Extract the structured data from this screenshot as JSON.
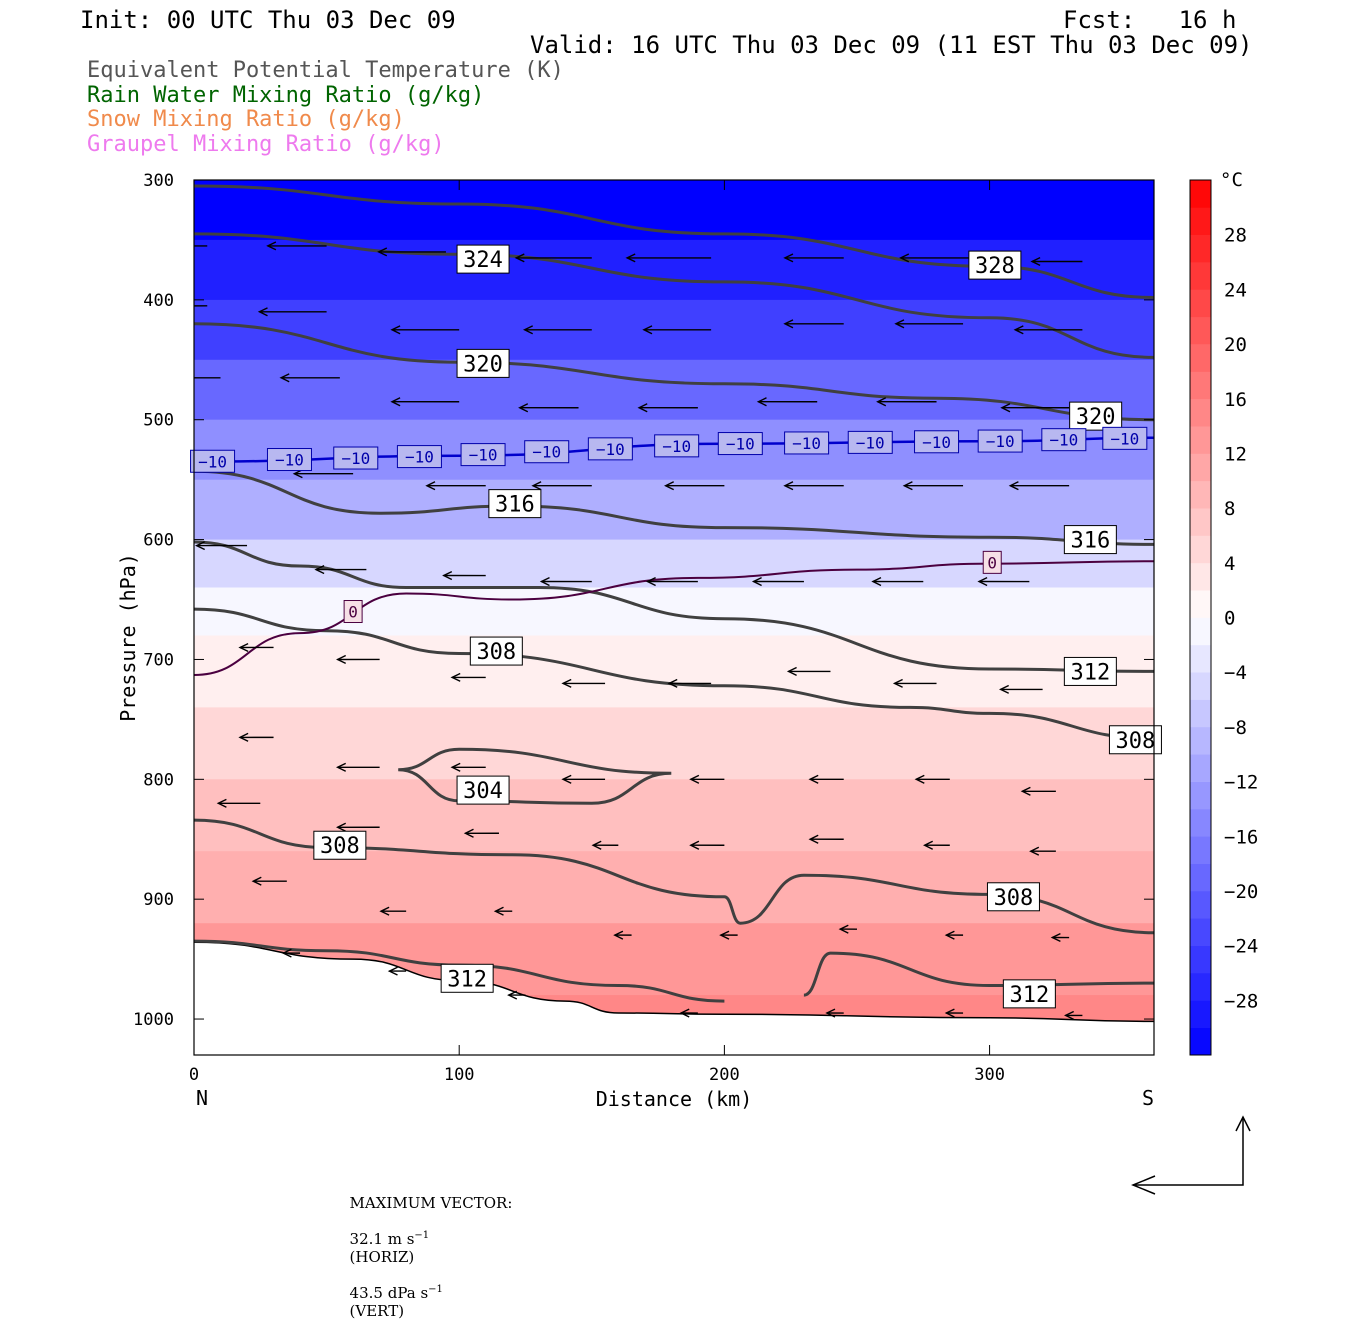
{
  "header": {
    "init": "Init: 00 UTC Thu 03 Dec 09",
    "fcst": "Fcst:   16 h",
    "valid": "Valid: 16 UTC Thu 03 Dec 09 (11 EST Thu 03 Dec 09)"
  },
  "legend": [
    {
      "label": "Equivalent Potential Temperature (K)",
      "color": "#555555"
    },
    {
      "label": "Rain Water Mixing Ratio (g/kg)",
      "color": "#006400"
    },
    {
      "label": "Snow Mixing Ratio (g/kg)",
      "color": "#f08a4b"
    },
    {
      "label": "Graupel Mixing Ratio (g/kg)",
      "color": "#ee7aee"
    }
  ],
  "chart_data": {
    "type": "contour_cross_section",
    "xlabel": "Distance (km)",
    "ylabel": "Pressure (hPa)",
    "xlim": [
      0,
      362
    ],
    "ylim": [
      1030,
      300
    ],
    "x_ticks": [
      0,
      100,
      200,
      300
    ],
    "y_ticks": [
      300,
      400,
      500,
      600,
      700,
      800,
      900,
      1000
    ],
    "left_end_label": "N",
    "right_end_label": "S",
    "colorbar": {
      "unit": "°C",
      "range": [
        -32,
        32
      ],
      "tick_labels": [
        "28",
        "24",
        "20",
        "16",
        "12",
        "8",
        "4",
        "0",
        "−4",
        "−8",
        "−12",
        "−16",
        "−20",
        "−24",
        "−28"
      ],
      "tick_values": [
        28,
        24,
        20,
        16,
        12,
        8,
        4,
        0,
        -4,
        -8,
        -12,
        -16,
        -20,
        -24,
        -28
      ],
      "low_color": "#0000ff",
      "mid_color": "#ffffff",
      "high_color": "#ff0000"
    },
    "temperature_shading_levels": [
      {
        "p": 300,
        "t": -32
      },
      {
        "p": 350,
        "t": -28
      },
      {
        "p": 400,
        "t": -24
      },
      {
        "p": 450,
        "t": -19
      },
      {
        "p": 500,
        "t": -14
      },
      {
        "p": 550,
        "t": -10
      },
      {
        "p": 600,
        "t": -5
      },
      {
        "p": 640,
        "t": -1
      },
      {
        "p": 680,
        "t": 2
      },
      {
        "p": 740,
        "t": 5
      },
      {
        "p": 800,
        "t": 8
      },
      {
        "p": 860,
        "t": 10
      },
      {
        "p": 920,
        "t": 13
      },
      {
        "p": 980,
        "t": 15
      }
    ],
    "theta_e_contours": [
      {
        "level": 328,
        "points": [
          [
            0,
            305
          ],
          [
            100,
            320
          ],
          [
            200,
            345
          ],
          [
            300,
            372
          ],
          [
            362,
            398
          ]
        ]
      },
      {
        "level": 324,
        "points": [
          [
            0,
            345
          ],
          [
            100,
            362
          ],
          [
            200,
            385
          ],
          [
            300,
            415
          ],
          [
            362,
            448
          ]
        ]
      },
      {
        "level": 320,
        "points": [
          [
            0,
            420
          ],
          [
            100,
            452
          ],
          [
            200,
            470
          ],
          [
            280,
            482
          ],
          [
            362,
            500
          ]
        ]
      },
      {
        "level": 316,
        "points": [
          [
            0,
            543
          ],
          [
            70,
            578
          ],
          [
            120,
            572
          ],
          [
            200,
            590
          ],
          [
            300,
            598
          ],
          [
            362,
            604
          ]
        ]
      },
      {
        "level": 312,
        "points": [
          [
            0,
            602
          ],
          [
            40,
            622
          ],
          [
            80,
            640
          ],
          [
            130,
            640
          ],
          [
            200,
            666
          ],
          [
            300,
            708
          ],
          [
            362,
            710
          ]
        ]
      },
      {
        "level": 308,
        "points": [
          [
            0,
            658
          ],
          [
            50,
            676
          ],
          [
            100,
            695
          ],
          [
            200,
            722
          ],
          [
            270,
            740
          ],
          [
            300,
            745
          ],
          [
            362,
            766
          ]
        ]
      },
      {
        "level": 308,
        "points": [
          [
            0,
            834
          ],
          [
            50,
            857
          ],
          [
            120,
            863
          ],
          [
            200,
            898
          ],
          [
            206,
            920
          ],
          [
            230,
            880
          ],
          [
            300,
            896
          ],
          [
            362,
            928
          ]
        ]
      },
      {
        "level": 312,
        "points": [
          [
            0,
            935
          ],
          [
            50,
            943
          ],
          [
            100,
            955
          ],
          [
            160,
            972
          ],
          [
            200,
            985
          ]
        ]
      },
      {
        "level": 312,
        "points": [
          [
            230,
            980
          ],
          [
            240,
            945
          ],
          [
            300,
            972
          ],
          [
            362,
            970
          ]
        ]
      }
    ],
    "theta_e_closed_contours": [
      {
        "level": 304,
        "points": [
          [
            77,
            792
          ],
          [
            100,
            775
          ],
          [
            180,
            795
          ],
          [
            150,
            820
          ],
          [
            100,
            818
          ],
          [
            77,
            792
          ]
        ]
      }
    ],
    "theta_e_labels": [
      {
        "text": "324",
        "x": 109,
        "p": 366
      },
      {
        "text": "328",
        "x": 302,
        "p": 371
      },
      {
        "text": "320",
        "x": 109,
        "p": 453
      },
      {
        "text": "320",
        "x": 340,
        "p": 497
      },
      {
        "text": "316",
        "x": 121,
        "p": 570
      },
      {
        "text": "316",
        "x": 338,
        "p": 600
      },
      {
        "text": "308",
        "x": 114,
        "p": 693
      },
      {
        "text": "312",
        "x": 338,
        "p": 710
      },
      {
        "text": "308",
        "x": 355,
        "p": 767
      },
      {
        "text": "304",
        "x": 109,
        "p": 809
      },
      {
        "text": "308",
        "x": 55,
        "p": 855
      },
      {
        "text": "308",
        "x": 309,
        "p": 898
      },
      {
        "text": "312",
        "x": 103,
        "p": 966
      },
      {
        "text": "312",
        "x": 315,
        "p": 979
      }
    ],
    "minus10_isotherm": {
      "level": -10,
      "points": [
        [
          0,
          535
        ],
        [
          100,
          530
        ],
        [
          200,
          520
        ],
        [
          300,
          518
        ],
        [
          362,
          515
        ]
      ],
      "label": "−10",
      "label_x": [
        7,
        36,
        61,
        85,
        109,
        133,
        157,
        182,
        206,
        231,
        255,
        280,
        304,
        328,
        351
      ]
    },
    "zero_isotherm": {
      "level": 0,
      "points": [
        [
          0,
          713
        ],
        [
          40,
          678
        ],
        [
          80,
          645
        ],
        [
          120,
          650
        ],
        [
          190,
          632
        ],
        [
          250,
          625
        ],
        [
          300,
          620
        ],
        [
          362,
          618
        ]
      ],
      "labels": [
        {
          "text": "0",
          "x": 60,
          "p": 660
        },
        {
          "text": "0",
          "x": 301,
          "p": 619
        }
      ]
    },
    "terrain_surface": [
      [
        0,
        936
      ],
      [
        60,
        950
      ],
      [
        100,
        968
      ],
      [
        140,
        985
      ],
      [
        160,
        995
      ],
      [
        200,
        996
      ],
      [
        300,
        999
      ],
      [
        362,
        1002
      ]
    ],
    "wind_vectors": [
      {
        "x": 5,
        "p": 355,
        "u": -18,
        "w": 0
      },
      {
        "x": 50,
        "p": 355,
        "u": -14,
        "w": 0
      },
      {
        "x": 95,
        "p": 360,
        "u": -16,
        "w": 0
      },
      {
        "x": 150,
        "p": 365,
        "u": -18,
        "w": 0
      },
      {
        "x": 195,
        "p": 365,
        "u": -20,
        "w": 0
      },
      {
        "x": 245,
        "p": 365,
        "u": -14,
        "w": 0
      },
      {
        "x": 295,
        "p": 365,
        "u": -18,
        "w": 0
      },
      {
        "x": 335,
        "p": 368,
        "u": -12,
        "w": 0
      },
      {
        "x": 5,
        "p": 405,
        "u": -16,
        "w": 0
      },
      {
        "x": 50,
        "p": 410,
        "u": -16,
        "w": 0
      },
      {
        "x": 100,
        "p": 425,
        "u": -16,
        "w": 0
      },
      {
        "x": 150,
        "p": 425,
        "u": -16,
        "w": 0
      },
      {
        "x": 195,
        "p": 425,
        "u": -16,
        "w": 0
      },
      {
        "x": 245,
        "p": 420,
        "u": -14,
        "w": 0
      },
      {
        "x": 290,
        "p": 420,
        "u": -16,
        "w": 0
      },
      {
        "x": 335,
        "p": 425,
        "u": -16,
        "w": 0
      },
      {
        "x": 10,
        "p": 465,
        "u": -14,
        "w": 0
      },
      {
        "x": 55,
        "p": 465,
        "u": -14,
        "w": 0
      },
      {
        "x": 100,
        "p": 485,
        "u": -16,
        "w": 0
      },
      {
        "x": 145,
        "p": 490,
        "u": -14,
        "w": 0
      },
      {
        "x": 190,
        "p": 490,
        "u": -14,
        "w": 0
      },
      {
        "x": 235,
        "p": 485,
        "u": -14,
        "w": 0
      },
      {
        "x": 280,
        "p": 485,
        "u": -14,
        "w": 0
      },
      {
        "x": 330,
        "p": 490,
        "u": -16,
        "w": 0
      },
      {
        "x": 60,
        "p": 545,
        "u": -14,
        "w": 0
      },
      {
        "x": 110,
        "p": 555,
        "u": -14,
        "w": 0
      },
      {
        "x": 150,
        "p": 555,
        "u": -14,
        "w": 0
      },
      {
        "x": 200,
        "p": 555,
        "u": -14,
        "w": 0
      },
      {
        "x": 245,
        "p": 555,
        "u": -14,
        "w": 0
      },
      {
        "x": 290,
        "p": 555,
        "u": -14,
        "w": 0
      },
      {
        "x": 330,
        "p": 555,
        "u": -14,
        "w": 0
      },
      {
        "x": 20,
        "p": 605,
        "u": -12,
        "w": 0
      },
      {
        "x": 65,
        "p": 625,
        "u": -12,
        "w": 0
      },
      {
        "x": 110,
        "p": 630,
        "u": -10,
        "w": 0
      },
      {
        "x": 150,
        "p": 635,
        "u": -12,
        "w": 0
      },
      {
        "x": 190,
        "p": 635,
        "u": -12,
        "w": 0
      },
      {
        "x": 230,
        "p": 635,
        "u": -12,
        "w": 0
      },
      {
        "x": 275,
        "p": 635,
        "u": -12,
        "w": 0
      },
      {
        "x": 315,
        "p": 635,
        "u": -12,
        "w": 0
      },
      {
        "x": 30,
        "p": 690,
        "u": -8,
        "w": 0
      },
      {
        "x": 70,
        "p": 700,
        "u": -10,
        "w": 0
      },
      {
        "x": 110,
        "p": 715,
        "u": -8,
        "w": 0
      },
      {
        "x": 155,
        "p": 720,
        "u": -10,
        "w": 0
      },
      {
        "x": 195,
        "p": 720,
        "u": -10,
        "w": 0
      },
      {
        "x": 240,
        "p": 710,
        "u": -10,
        "w": 0
      },
      {
        "x": 280,
        "p": 720,
        "u": -10,
        "w": 0
      },
      {
        "x": 320,
        "p": 725,
        "u": -10,
        "w": 0
      },
      {
        "x": 30,
        "p": 765,
        "u": -8,
        "w": 0
      },
      {
        "x": 70,
        "p": 790,
        "u": -10,
        "w": 0
      },
      {
        "x": 110,
        "p": 790,
        "u": -8,
        "w": 0
      },
      {
        "x": 155,
        "p": 800,
        "u": -10,
        "w": 0
      },
      {
        "x": 200,
        "p": 800,
        "u": -8,
        "w": 0
      },
      {
        "x": 245,
        "p": 800,
        "u": -8,
        "w": 0
      },
      {
        "x": 285,
        "p": 800,
        "u": -8,
        "w": 0
      },
      {
        "x": 325,
        "p": 810,
        "u": -8,
        "w": 0
      },
      {
        "x": 25,
        "p": 820,
        "u": -10,
        "w": 0
      },
      {
        "x": 70,
        "p": 840,
        "u": -10,
        "w": 0
      },
      {
        "x": 115,
        "p": 845,
        "u": -8,
        "w": 0
      },
      {
        "x": 160,
        "p": 855,
        "u": -6,
        "w": 0
      },
      {
        "x": 200,
        "p": 855,
        "u": -8,
        "w": 0
      },
      {
        "x": 245,
        "p": 850,
        "u": -8,
        "w": 0
      },
      {
        "x": 285,
        "p": 855,
        "u": -6,
        "w": 0
      },
      {
        "x": 325,
        "p": 860,
        "u": -6,
        "w": 0
      },
      {
        "x": 35,
        "p": 885,
        "u": -8,
        "w": 0
      },
      {
        "x": 80,
        "p": 910,
        "u": -6,
        "w": 0
      },
      {
        "x": 120,
        "p": 910,
        "u": -4,
        "w": 0
      },
      {
        "x": 165,
        "p": 930,
        "u": -4,
        "w": 0
      },
      {
        "x": 205,
        "p": 930,
        "u": -4,
        "w": 0
      },
      {
        "x": 250,
        "p": 925,
        "u": -4,
        "w": 0
      },
      {
        "x": 290,
        "p": 930,
        "u": -4,
        "w": 0
      },
      {
        "x": 330,
        "p": 932,
        "u": -4,
        "w": 0
      },
      {
        "x": 40,
        "p": 945,
        "u": -4,
        "w": 0
      },
      {
        "x": 80,
        "p": 960,
        "u": -4,
        "w": 0
      },
      {
        "x": 125,
        "p": 980,
        "u": -4,
        "w": 0
      },
      {
        "x": 190,
        "p": 995,
        "u": -4,
        "w": 0
      },
      {
        "x": 245,
        "p": 995,
        "u": -4,
        "w": 0
      },
      {
        "x": 290,
        "p": 995,
        "u": -4,
        "w": 0
      },
      {
        "x": 335,
        "p": 997,
        "u": -4,
        "w": 0
      }
    ]
  },
  "footer": {
    "max_vector_label": "MAXIMUM VECTOR:",
    "horiz_value": "32.1 m s",
    "horiz_exp": "−1",
    "horiz_tag": "(HORIZ)",
    "vert_value": "43.5 dPa s",
    "vert_exp": "−1",
    "vert_tag": "(VERT)"
  }
}
